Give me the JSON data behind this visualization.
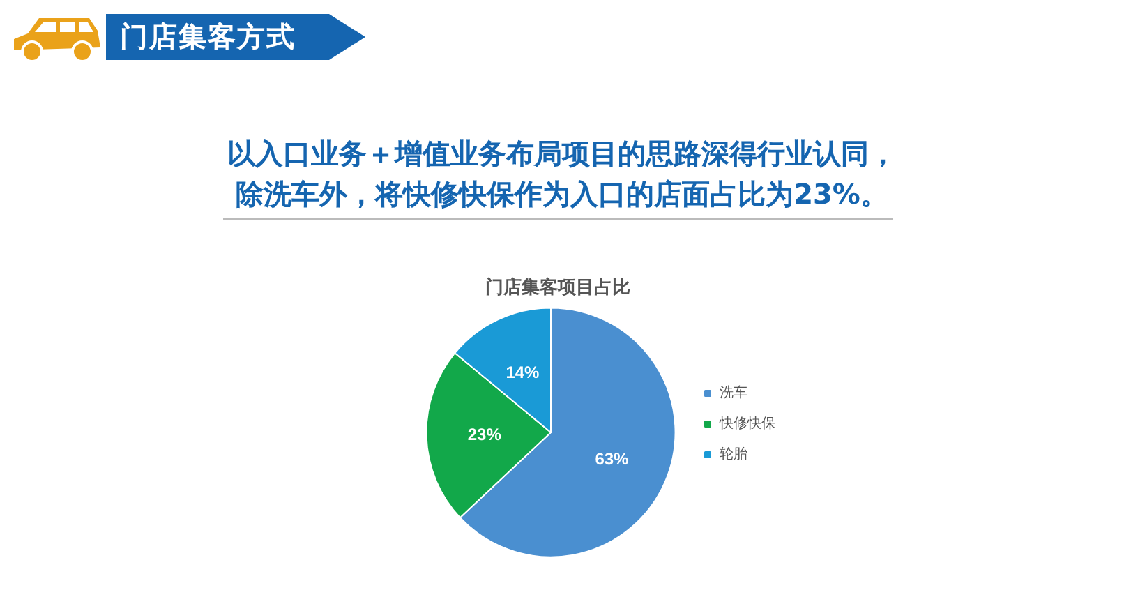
{
  "chart_data": {
    "type": "pie",
    "title": "门店集客项目占比",
    "categories": [
      "洗车",
      "快修快保",
      "轮胎"
    ],
    "values": [
      63,
      23,
      14
    ],
    "value_labels": [
      "63%",
      "23%",
      "14%"
    ],
    "colors": [
      "#4a8fd0",
      "#12a84a",
      "#1a9ad6"
    ],
    "legend": "right",
    "annotations": [
      "门店集客方式",
      "以入口业务＋增值业务布局项目的思路深得行业认同，",
      "除洗车外，将快修快保作为入口的店面占比为23%。"
    ]
  }
}
